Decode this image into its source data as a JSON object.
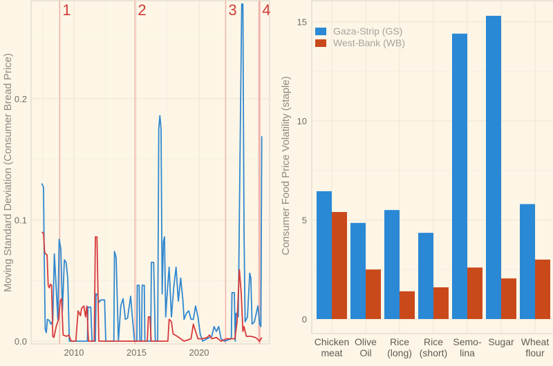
{
  "chart_data": [
    {
      "type": "line",
      "ylabel": "Moving Standard Deviation (Consumer Bread Price)",
      "xlabel": "",
      "x_ticks": [
        2010,
        2015,
        2020
      ],
      "x_tick_labels": [
        "2010",
        "2015",
        "2020"
      ],
      "y_ticks": [
        0.0,
        0.1,
        0.2
      ],
      "y_tick_labels": [
        "0.0",
        "0.1",
        "0.2"
      ],
      "grid": true,
      "colors": {
        "blue": "#2f87cf",
        "red": "#d6393a",
        "event": "#f2b3ab",
        "background": "#fdf6e7"
      },
      "events": [
        {
          "label": "1",
          "x": 2008.86
        },
        {
          "label": "2",
          "x": 2014.88
        },
        {
          "label": "3",
          "x": 2022.12
        },
        {
          "label": "4",
          "x": 2024.82
        }
      ],
      "series": [
        {
          "color": "blue",
          "points": [
            [
              2007.42,
              0.13
            ],
            [
              2007.57,
              0.127
            ],
            [
              2007.62,
              0.073
            ],
            [
              2007.7,
              0.01
            ],
            [
              2007.79,
              0.007
            ],
            [
              2007.88,
              0.018
            ],
            [
              2008.03,
              0.017
            ],
            [
              2008.16,
              0.014
            ],
            [
              2008.31,
              0.017
            ],
            [
              2008.43,
              0.072
            ],
            [
              2008.58,
              0.044
            ],
            [
              2008.71,
              0.018
            ],
            [
              2008.82,
              0.084
            ],
            [
              2008.95,
              0.076
            ],
            [
              2009.08,
              0.025
            ],
            [
              2009.23,
              0.067
            ],
            [
              2009.37,
              0.065
            ],
            [
              2009.5,
              0.052
            ],
            [
              2009.63,
              0
            ],
            [
              2011.07,
              0
            ],
            [
              2011.12,
              0.028
            ],
            [
              2011.34,
              0.028
            ],
            [
              2011.44,
              0
            ],
            [
              2011.71,
              0
            ],
            [
              2011.77,
              0.039
            ],
            [
              2011.9,
              0.038
            ],
            [
              2011.99,
              0.032
            ],
            [
              2012.17,
              0.034
            ],
            [
              2012.45,
              0.034
            ],
            [
              2012.54,
              0
            ],
            [
              2013.19,
              0
            ],
            [
              2013.24,
              0.074
            ],
            [
              2013.37,
              0.069
            ],
            [
              2013.55,
              0
            ],
            [
              2013.74,
              0.029
            ],
            [
              2013.92,
              0.035
            ],
            [
              2014.11,
              0.018
            ],
            [
              2014.29,
              0.019
            ],
            [
              2014.53,
              0.037
            ],
            [
              2014.66,
              0.021
            ],
            [
              2014.84,
              0
            ],
            [
              2015.03,
              0
            ],
            [
              2015.06,
              0.046
            ],
            [
              2015.21,
              0.046
            ],
            [
              2015.27,
              0
            ],
            [
              2015.4,
              0
            ],
            [
              2015.45,
              0.046
            ],
            [
              2015.62,
              0.046
            ],
            [
              2015.67,
              0
            ],
            [
              2016.13,
              0
            ],
            [
              2016.19,
              0.065
            ],
            [
              2016.37,
              0.065
            ],
            [
              2016.5,
              0
            ],
            [
              2016.69,
              0
            ],
            [
              2016.78,
              0.175
            ],
            [
              2016.87,
              0.186
            ],
            [
              2016.96,
              0.175
            ],
            [
              2017.05,
              0.039
            ],
            [
              2017.15,
              0.082
            ],
            [
              2017.24,
              0.086
            ],
            [
              2017.33,
              0.02
            ],
            [
              2017.42,
              0.035
            ],
            [
              2017.61,
              0.061
            ],
            [
              2017.79,
              0.02
            ],
            [
              2017.97,
              0.044
            ],
            [
              2018.16,
              0.061
            ],
            [
              2018.34,
              0.033
            ],
            [
              2018.53,
              0.052
            ],
            [
              2018.71,
              0.033
            ],
            [
              2018.8,
              0.018
            ],
            [
              2018.99,
              0.023
            ],
            [
              2019.17,
              0.025
            ],
            [
              2019.36,
              0.018
            ],
            [
              2019.54,
              0.018
            ],
            [
              2019.72,
              0.029
            ],
            [
              2019.91,
              0.02
            ],
            [
              2020.09,
              0.006
            ],
            [
              2020.28,
              0
            ],
            [
              2020.64,
              0.002
            ],
            [
              2021.01,
              0.004
            ],
            [
              2021.2,
              0.012
            ],
            [
              2021.38,
              0.008
            ],
            [
              2021.57,
              0.012
            ],
            [
              2021.75,
              0.002
            ],
            [
              2022.03,
              0
            ],
            [
              2022.58,
              0.002
            ],
            [
              2022.63,
              0.04
            ],
            [
              2022.82,
              0.04
            ],
            [
              2022.89,
              0
            ],
            [
              2022.95,
              0.023
            ],
            [
              2023.13,
              0.02
            ],
            [
              2023.31,
              0.187
            ],
            [
              2023.41,
              0.278
            ],
            [
              2023.5,
              0.278
            ],
            [
              2023.59,
              0.092
            ],
            [
              2023.68,
              0.016
            ],
            [
              2023.87,
              0.02
            ],
            [
              2024.05,
              0.056
            ],
            [
              2024.14,
              0.052
            ],
            [
              2024.24,
              0.014
            ],
            [
              2024.42,
              0.016
            ],
            [
              2024.7,
              0.029
            ],
            [
              2024.84,
              0.014
            ],
            [
              2024.94,
              0.012
            ],
            [
              2025.01,
              0.169
            ]
          ]
        },
        {
          "color": "red",
          "points": [
            [
              2007.42,
              0.09
            ],
            [
              2007.57,
              0.089
            ],
            [
              2007.66,
              0.073
            ],
            [
              2007.75,
              0.072
            ],
            [
              2007.85,
              0.071
            ],
            [
              2007.94,
              0.046
            ],
            [
              2008.03,
              0.044
            ],
            [
              2008.12,
              0.047
            ],
            [
              2008.21,
              0.046
            ],
            [
              2008.31,
              0.004
            ],
            [
              2008.4,
              0.003
            ],
            [
              2008.58,
              0.012
            ],
            [
              2008.77,
              0.018
            ],
            [
              2008.9,
              0.033
            ],
            [
              2009.01,
              0.035
            ],
            [
              2009.13,
              0.005
            ],
            [
              2009.41,
              0.004
            ],
            [
              2009.59,
              0.005
            ],
            [
              2009.78,
              0
            ],
            [
              2010.15,
              0
            ],
            [
              2010.33,
              0.025
            ],
            [
              2010.52,
              0.021
            ],
            [
              2010.61,
              0.027
            ],
            [
              2010.79,
              0.029
            ],
            [
              2010.92,
              0.02
            ],
            [
              2011.03,
              0.029
            ],
            [
              2011.16,
              0
            ],
            [
              2011.62,
              0
            ],
            [
              2011.71,
              0.086
            ],
            [
              2011.84,
              0.086
            ],
            [
              2011.99,
              0
            ],
            [
              2015.86,
              0
            ],
            [
              2015.95,
              0.02
            ],
            [
              2016.08,
              0.02
            ],
            [
              2016.17,
              0
            ],
            [
              2017.51,
              0
            ],
            [
              2017.61,
              0.018
            ],
            [
              2017.79,
              0.016
            ],
            [
              2017.92,
              0.006
            ],
            [
              2018.25,
              0.004
            ],
            [
              2018.8,
              0
            ],
            [
              2019.36,
              0.002
            ],
            [
              2019.54,
              0.014
            ],
            [
              2019.72,
              0.008
            ],
            [
              2019.91,
              0.002
            ],
            [
              2020.28,
              0.002
            ],
            [
              2020.64,
              0.003
            ],
            [
              2020.83,
              0.005
            ],
            [
              2021.01,
              0.002
            ],
            [
              2021.38,
              0.003
            ],
            [
              2021.75,
              0
            ],
            [
              2022.21,
              0.002
            ],
            [
              2022.49,
              0.002
            ],
            [
              2022.86,
              0.002
            ],
            [
              2023.04,
              0.016
            ],
            [
              2023.22,
              0.059
            ],
            [
              2023.37,
              0.039
            ],
            [
              2023.5,
              0.008
            ],
            [
              2023.59,
              0.012
            ],
            [
              2023.78,
              0.004
            ],
            [
              2024.14,
              0.004
            ],
            [
              2024.51,
              0.003
            ],
            [
              2024.84,
              0
            ],
            [
              2025.01,
              0.003
            ]
          ]
        }
      ]
    },
    {
      "type": "bar",
      "ylabel": "Consumer Food Price Volatility (staple)",
      "xlabel": "",
      "y_ticks": [
        0,
        5,
        10,
        15
      ],
      "y_tick_labels": [
        "0",
        "5",
        "10",
        "15"
      ],
      "grid": true,
      "legend_position": "top-left",
      "categories": [
        [
          "Chicken",
          "meat"
        ],
        [
          "Olive",
          "Oil"
        ],
        [
          "Rice",
          "(long)"
        ],
        [
          "Rice",
          "(short)"
        ],
        [
          "Semo-",
          "lina"
        ],
        [
          "Sugar",
          ""
        ],
        [
          "Wheat",
          "flour"
        ]
      ],
      "series": [
        {
          "name": "Gaza-Strip (GS)",
          "color": "#2a88d4",
          "values": [
            6.45,
            4.85,
            5.5,
            4.35,
            14.4,
            15.3,
            5.8
          ]
        },
        {
          "name": "West-Bank (WB)",
          "color": "#c9491b",
          "values": [
            5.4,
            2.5,
            1.4,
            1.6,
            2.6,
            2.05,
            3.0
          ]
        }
      ]
    }
  ]
}
